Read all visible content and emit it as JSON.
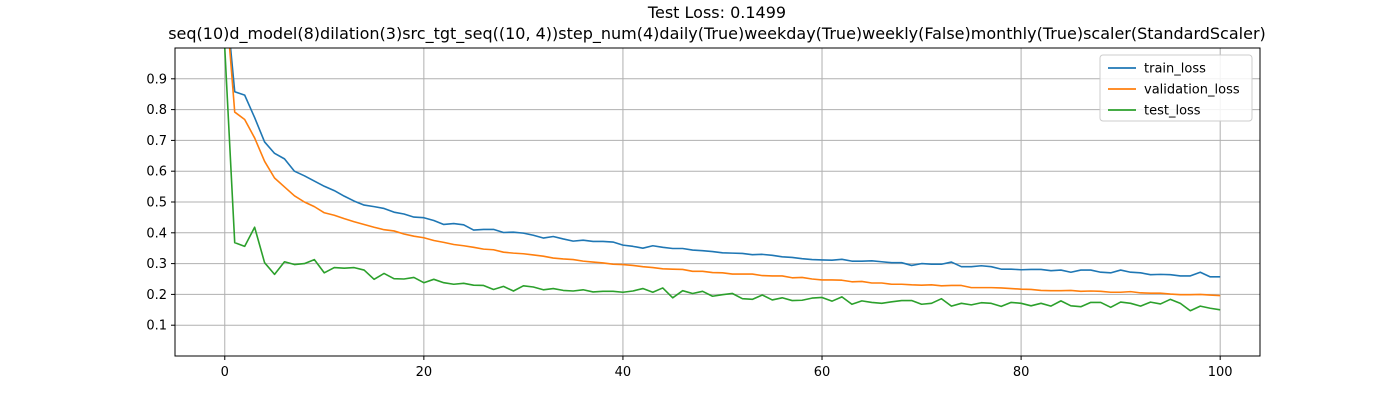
{
  "chart_data": {
    "type": "line",
    "title": "Test Loss: 0.1499",
    "subtitle": "seq(10)d_model(8)dilation(3)src_tgt_seq((10, 4))step_num(4)daily(True)weekday(True)weekly(False)monthly(True)scaler(StandardScaler)",
    "xlabel": "",
    "ylabel": "",
    "xlim": [
      -5,
      104
    ],
    "ylim": [
      0.0,
      1.0
    ],
    "x_ticks": [
      0,
      20,
      40,
      60,
      80,
      100
    ],
    "y_ticks": [
      0.1,
      0.2,
      0.3,
      0.4,
      0.5,
      0.6,
      0.7,
      0.8,
      0.9
    ],
    "grid": true,
    "legend_position": "top-right",
    "series": [
      {
        "name": "train_loss",
        "color": "#1f77b4",
        "values": [
          1.2,
          0.858,
          0.847,
          0.774,
          0.695,
          0.658,
          0.64,
          0.6,
          0.585,
          0.568,
          0.551,
          0.537,
          0.519,
          0.503,
          0.49,
          0.485,
          0.479,
          0.467,
          0.461,
          0.451,
          0.449,
          0.44,
          0.427,
          0.43,
          0.426,
          0.409,
          0.411,
          0.411,
          0.401,
          0.402,
          0.399,
          0.392,
          0.383,
          0.388,
          0.38,
          0.373,
          0.376,
          0.372,
          0.372,
          0.37,
          0.36,
          0.356,
          0.35,
          0.358,
          0.353,
          0.349,
          0.349,
          0.344,
          0.342,
          0.339,
          0.335,
          0.334,
          0.333,
          0.329,
          0.33,
          0.327,
          0.322,
          0.32,
          0.316,
          0.313,
          0.312,
          0.311,
          0.314,
          0.308,
          0.308,
          0.309,
          0.306,
          0.303,
          0.303,
          0.294,
          0.3,
          0.298,
          0.298,
          0.305,
          0.29,
          0.29,
          0.293,
          0.29,
          0.282,
          0.282,
          0.28,
          0.281,
          0.281,
          0.277,
          0.279,
          0.272,
          0.279,
          0.279,
          0.272,
          0.27,
          0.279,
          0.272,
          0.27,
          0.264,
          0.265,
          0.264,
          0.26,
          0.26,
          0.272,
          0.257,
          0.257
        ]
      },
      {
        "name": "validation_loss",
        "color": "#ff7f0e",
        "values": [
          1.2,
          0.792,
          0.768,
          0.708,
          0.632,
          0.578,
          0.549,
          0.52,
          0.5,
          0.485,
          0.465,
          0.457,
          0.446,
          0.436,
          0.427,
          0.418,
          0.41,
          0.406,
          0.396,
          0.389,
          0.384,
          0.375,
          0.369,
          0.362,
          0.358,
          0.353,
          0.347,
          0.345,
          0.337,
          0.334,
          0.332,
          0.328,
          0.324,
          0.318,
          0.315,
          0.313,
          0.308,
          0.305,
          0.302,
          0.298,
          0.297,
          0.294,
          0.29,
          0.287,
          0.283,
          0.282,
          0.281,
          0.275,
          0.275,
          0.271,
          0.27,
          0.266,
          0.266,
          0.266,
          0.261,
          0.26,
          0.26,
          0.254,
          0.255,
          0.25,
          0.247,
          0.247,
          0.246,
          0.241,
          0.242,
          0.237,
          0.237,
          0.233,
          0.233,
          0.231,
          0.23,
          0.231,
          0.228,
          0.229,
          0.229,
          0.222,
          0.222,
          0.222,
          0.221,
          0.219,
          0.217,
          0.216,
          0.213,
          0.212,
          0.212,
          0.213,
          0.21,
          0.211,
          0.21,
          0.207,
          0.207,
          0.209,
          0.205,
          0.204,
          0.204,
          0.201,
          0.199,
          0.199,
          0.2,
          0.198,
          0.196
        ]
      },
      {
        "name": "test_loss",
        "color": "#2ca02c",
        "values": [
          1.0,
          0.368,
          0.356,
          0.418,
          0.303,
          0.265,
          0.306,
          0.297,
          0.3,
          0.313,
          0.27,
          0.287,
          0.285,
          0.287,
          0.279,
          0.249,
          0.268,
          0.251,
          0.25,
          0.255,
          0.238,
          0.249,
          0.238,
          0.233,
          0.236,
          0.23,
          0.229,
          0.216,
          0.226,
          0.211,
          0.228,
          0.224,
          0.215,
          0.219,
          0.213,
          0.211,
          0.215,
          0.208,
          0.21,
          0.21,
          0.207,
          0.211,
          0.219,
          0.207,
          0.221,
          0.189,
          0.212,
          0.203,
          0.21,
          0.194,
          0.199,
          0.203,
          0.186,
          0.184,
          0.198,
          0.182,
          0.189,
          0.18,
          0.181,
          0.188,
          0.19,
          0.178,
          0.192,
          0.168,
          0.179,
          0.174,
          0.171,
          0.176,
          0.18,
          0.18,
          0.168,
          0.171,
          0.186,
          0.162,
          0.171,
          0.166,
          0.173,
          0.171,
          0.161,
          0.174,
          0.171,
          0.163,
          0.171,
          0.162,
          0.179,
          0.163,
          0.16,
          0.174,
          0.174,
          0.158,
          0.175,
          0.171,
          0.162,
          0.175,
          0.169,
          0.184,
          0.171,
          0.147,
          0.162,
          0.155,
          0.15
        ]
      }
    ]
  }
}
